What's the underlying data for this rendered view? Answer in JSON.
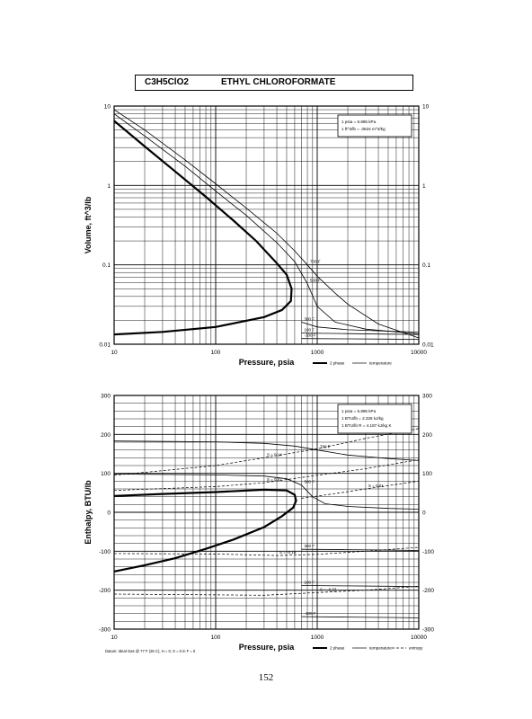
{
  "title": {
    "formula": "C3H5ClO2",
    "name": "ETHYL CHLOROFORMATE"
  },
  "page_number": "152",
  "chart_data": [
    {
      "type": "line",
      "xscale": "log",
      "yscale": "log",
      "xlim": [
        10,
        10000
      ],
      "ylim": [
        0.01,
        10
      ],
      "xlabel": "Pressure,  psia",
      "ylabel": "Volume,  ft^3/lb",
      "x_ticks": [
        "10",
        "100",
        "1000",
        "10000"
      ],
      "y_ticks_left": [
        "0.01",
        "0.1",
        "1",
        "10"
      ],
      "y_ticks_right": [
        "0.01",
        "0.1",
        "1",
        "10"
      ],
      "grid": true,
      "conversion_box": [
        "1 psia  =  6.895 kPa",
        "1 ft^3/lb  =  .0624 m^3/kg"
      ],
      "legend": [
        "2 phase",
        "temperature"
      ],
      "series": [
        {
          "name": "2 phase",
          "style": "thick",
          "points": [
            [
              10,
              6.5
            ],
            [
              20,
              3.1
            ],
            [
              40,
              1.5
            ],
            [
              80,
              0.72
            ],
            [
              150,
              0.36
            ],
            [
              250,
              0.2
            ],
            [
              400,
              0.105
            ],
            [
              500,
              0.075
            ],
            [
              560,
              0.05
            ],
            [
              550,
              0.035
            ],
            [
              450,
              0.027
            ],
            [
              300,
              0.022
            ],
            [
              100,
              0.0165
            ],
            [
              30,
              0.0143
            ],
            [
              10,
              0.0133
            ]
          ]
        },
        {
          "label": "700 F",
          "style": "thin",
          "points": [
            [
              10,
              9
            ],
            [
              20,
              5
            ],
            [
              50,
              2.1
            ],
            [
              100,
              1.05
            ],
            [
              200,
              0.52
            ],
            [
              400,
              0.25
            ],
            [
              600,
              0.15
            ],
            [
              800,
              0.1
            ],
            [
              1000,
              0.072
            ],
            [
              1500,
              0.044
            ],
            [
              2000,
              0.032
            ],
            [
              4000,
              0.018
            ],
            [
              10000,
              0.012
            ]
          ]
        },
        {
          "label": "500 F",
          "style": "thin",
          "points": [
            [
              10,
              8
            ],
            [
              20,
              4.2
            ],
            [
              50,
              1.75
            ],
            [
              100,
              0.85
            ],
            [
              200,
              0.42
            ],
            [
              400,
              0.19
            ],
            [
              600,
              0.11
            ],
            [
              800,
              0.058
            ],
            [
              1000,
              0.03
            ],
            [
              1500,
              0.019
            ],
            [
              3000,
              0.0155
            ],
            [
              10000,
              0.0135
            ]
          ]
        },
        {
          "label": "300 F",
          "style": "thin",
          "points": [
            [
              700,
              0.019
            ],
            [
              1000,
              0.0165
            ],
            [
              2000,
              0.0152
            ],
            [
              5000,
              0.0146
            ],
            [
              10000,
              0.0142
            ]
          ]
        },
        {
          "label": "100 F",
          "style": "thin",
          "points": [
            [
              700,
              0.0138
            ],
            [
              2000,
              0.0136
            ],
            [
              5000,
              0.0134
            ],
            [
              10000,
              0.0133
            ]
          ]
        },
        {
          "label": "-100 F",
          "style": "thin",
          "points": [
            [
              700,
              0.0118
            ],
            [
              2000,
              0.0117
            ],
            [
              5000,
              0.0116
            ],
            [
              10000,
              0.0115
            ]
          ]
        }
      ]
    },
    {
      "type": "line",
      "xscale": "log",
      "yscale": "linear",
      "xlim": [
        10,
        10000
      ],
      "ylim": [
        -300,
        300
      ],
      "xlabel": "Pressure,  psia",
      "ylabel": "Enthalpy,  BTU/lb",
      "x_ticks": [
        "10",
        "100",
        "1000",
        "10000"
      ],
      "y_ticks_left": [
        "-300",
        "-200",
        "-100",
        "0",
        "100",
        "200",
        "300"
      ],
      "y_ticks_right": [
        "-300",
        "-200",
        "-100",
        "0",
        "100",
        "200",
        "300"
      ],
      "grid": true,
      "conversion_box": [
        "1 psia  =  6.895 kPa",
        "1 BTU/lb  =  2.326 kJ/kg",
        "1 BTU/lb R  =  4.187 kJ/kg K"
      ],
      "legend": [
        "2 phase",
        "temperature",
        "entropy"
      ],
      "footnote": "Datum: Ideal Gas @ 77 F (25 C),  H = 0,  S = 0 in F = 0",
      "series": [
        {
          "name": "2 phase",
          "style": "thick",
          "points": [
            [
              10,
              42
            ],
            [
              30,
              47
            ],
            [
              100,
              52
            ],
            [
              300,
              58
            ],
            [
              500,
              56
            ],
            [
              600,
              45
            ],
            [
              620,
              30
            ],
            [
              580,
              12
            ],
            [
              450,
              -10
            ],
            [
              300,
              -38
            ],
            [
              150,
              -70
            ],
            [
              80,
              -94
            ],
            [
              40,
              -118
            ],
            [
              20,
              -136
            ],
            [
              10,
              -152
            ]
          ]
        },
        {
          "label": "700 F",
          "style": "thin",
          "points": [
            [
              10,
              183
            ],
            [
              100,
              181
            ],
            [
              300,
              177
            ],
            [
              600,
              170
            ],
            [
              1000,
              160
            ],
            [
              2000,
              147
            ],
            [
              5000,
              138
            ],
            [
              10000,
              133
            ]
          ]
        },
        {
          "label": "500 F",
          "style": "thin",
          "points": [
            [
              10,
              98
            ],
            [
              100,
              96
            ],
            [
              300,
              93
            ],
            [
              500,
              86
            ],
            [
              700,
              70
            ],
            [
              900,
              40
            ],
            [
              1200,
              22
            ],
            [
              2000,
              15
            ],
            [
              5000,
              10
            ],
            [
              10000,
              8
            ]
          ]
        },
        {
          "label": "300 F",
          "style": "thin",
          "points": [
            [
              700,
              -95
            ],
            [
              2000,
              -96
            ],
            [
              5000,
              -97
            ],
            [
              10000,
              -98
            ]
          ]
        },
        {
          "label": "100 F",
          "style": "thin",
          "points": [
            [
              700,
              -188
            ],
            [
              2000,
              -189
            ],
            [
              5000,
              -190
            ],
            [
              10000,
              -191
            ]
          ]
        },
        {
          "label": "-100 F",
          "style": "thin",
          "points": [
            [
              700,
              -268
            ],
            [
              2000,
              -269
            ],
            [
              5000,
              -270
            ],
            [
              10000,
              -271
            ]
          ]
        },
        {
          "label": "S = 0.14",
          "style": "dashed",
          "points": [
            [
              10,
              95
            ],
            [
              100,
              120
            ],
            [
              300,
              140
            ],
            [
              1000,
              163
            ],
            [
              3000,
              190
            ],
            [
              10000,
              215
            ]
          ]
        },
        {
          "label": "S = 0.07",
          "style": "dashed",
          "points": [
            [
              10,
              56
            ],
            [
              100,
              66
            ],
            [
              300,
              76
            ],
            [
              1000,
              95
            ],
            [
              3000,
              112
            ],
            [
              10000,
              135
            ]
          ]
        },
        {
          "label": "S = 0.01",
          "style": "dashed",
          "points": [
            [
              700,
              36
            ],
            [
              1500,
              48
            ],
            [
              3000,
              60
            ],
            [
              10000,
              80
            ]
          ]
        },
        {
          "label": "S = -0.16",
          "style": "dashed",
          "points": [
            [
              10,
              -106
            ],
            [
              100,
              -107
            ],
            [
              400,
              -111
            ],
            [
              1000,
              -108
            ],
            [
              3000,
              -100
            ],
            [
              10000,
              -90
            ]
          ]
        },
        {
          "label": "S = -0.33",
          "style": "dashed",
          "points": [
            [
              10,
              -210
            ],
            [
              300,
              -213
            ],
            [
              1000,
              -206
            ],
            [
              3000,
              -200
            ],
            [
              10000,
              -190
            ]
          ]
        }
      ]
    }
  ]
}
